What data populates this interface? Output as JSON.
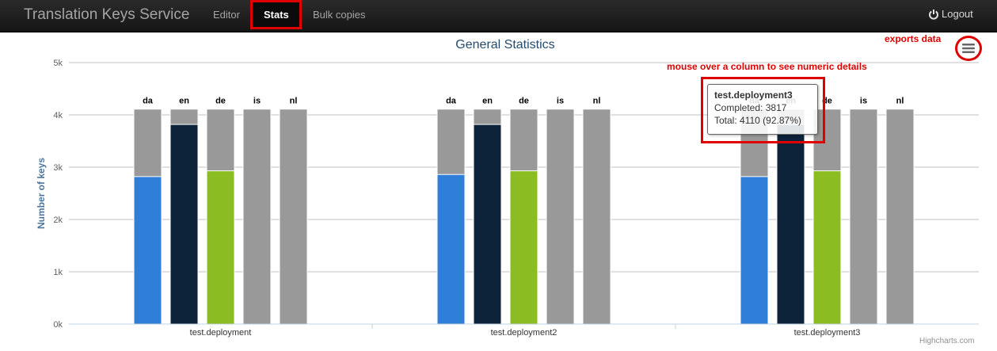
{
  "navbar": {
    "brand": "Translation Keys Service",
    "items": [
      {
        "label": "Editor",
        "active": false
      },
      {
        "label": "Stats",
        "active": true
      },
      {
        "label": "Bulk copies",
        "active": false
      }
    ],
    "logout_label": "Logout"
  },
  "annotations": {
    "exports": "exports data",
    "mouseover": "mouse over a column to see numeric details"
  },
  "tooltip": {
    "title": "test.deployment3",
    "completed_label": "Completed:",
    "completed_value": "3817",
    "total_label": "Total:",
    "total_value": "4110 (92.87%)"
  },
  "credits": "Highcharts.com",
  "colors": {
    "total": "#999999",
    "da": "#2f7ed8",
    "en": "#0d233a",
    "de": "#8bbc21",
    "is": "#910000",
    "nl": "#1aadce",
    "title": "#274b6d"
  },
  "chart_data": {
    "type": "bar",
    "title": "General Statistics",
    "ylabel": "Number of keys",
    "ylim": [
      0,
      5000
    ],
    "yticks": [
      "0k",
      "1k",
      "2k",
      "3k",
      "4k",
      "5k"
    ],
    "categories": [
      "test.deployment",
      "test.deployment2",
      "test.deployment3"
    ],
    "series_labels": [
      "da",
      "en",
      "de",
      "is",
      "nl"
    ],
    "total": [
      4110,
      4110,
      4110
    ],
    "completed": {
      "da": [
        2820,
        2860,
        2820
      ],
      "en": [
        3817,
        3817,
        3817
      ],
      "de": [
        2930,
        2930,
        2930
      ],
      "is": [
        0,
        0,
        0
      ],
      "nl": [
        0,
        0,
        0
      ]
    }
  }
}
